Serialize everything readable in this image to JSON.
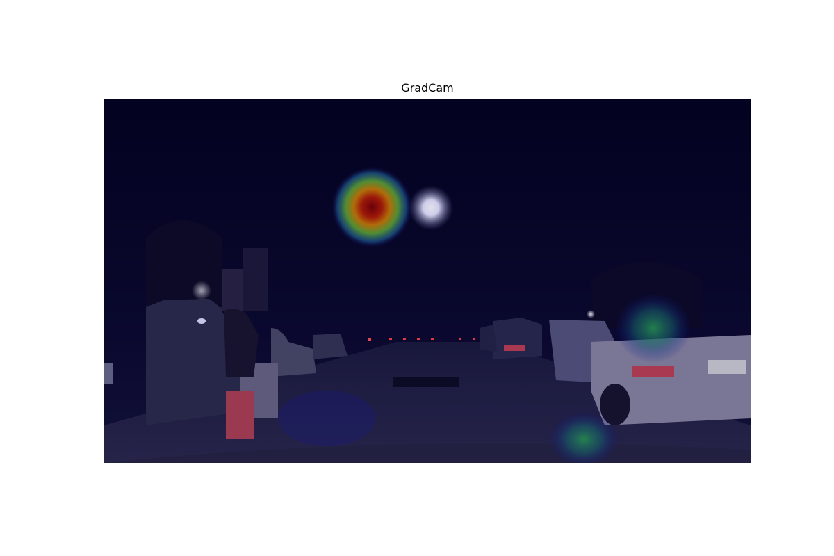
{
  "figure": {
    "title": "GradCam"
  },
  "image": {
    "description_colors": {
      "background": "#05031a",
      "heatmap_hot": "#8b0000",
      "heatmap_mid": "#e0a000",
      "heatmap_cool": "#2a9a4a",
      "heatmap_edge": "#1a1aa0"
    }
  }
}
